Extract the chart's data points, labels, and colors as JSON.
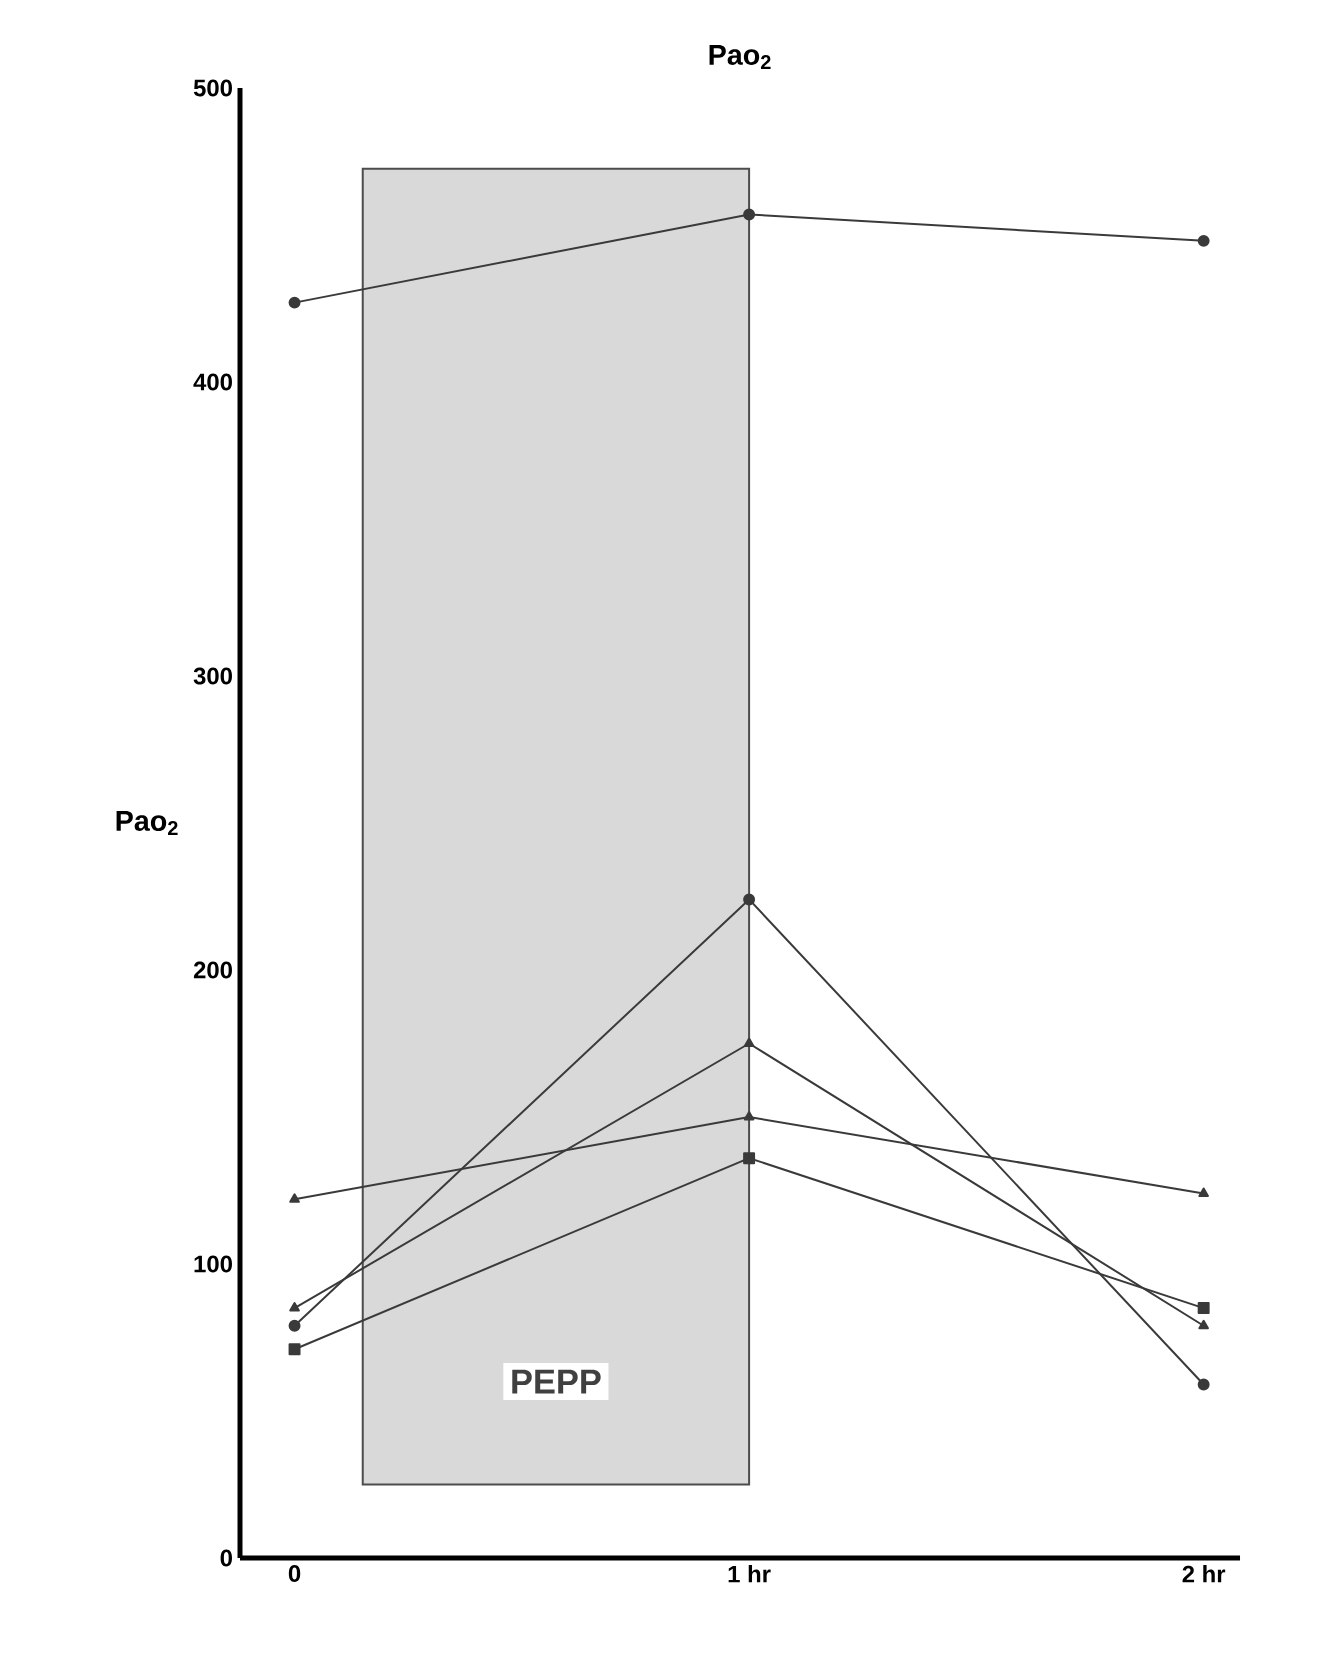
{
  "chart_data": {
    "type": "line",
    "title": "Pao$_{2}$",
    "ylabel": "Pao$_{2}$",
    "x": [
      0,
      1,
      2
    ],
    "xlim": [
      -0.12,
      2.08
    ],
    "xticks": [
      {
        "value": 0,
        "label": "0"
      },
      {
        "value": 1,
        "label": "1 hr"
      },
      {
        "value": 2,
        "label": "2 hr"
      }
    ],
    "ylim": [
      0,
      500
    ],
    "yticks": [
      0,
      100,
      200,
      300,
      400,
      500
    ],
    "series": [
      {
        "color": "#3a3a3a",
        "values": [
          427,
          457,
          448
        ],
        "marker": "circle"
      },
      {
        "color": "#3a3a3a",
        "values": [
          79,
          224,
          59
        ],
        "marker": "circle"
      },
      {
        "color": "#3a3a3a",
        "values": [
          85,
          175,
          79
        ],
        "marker": "triangle"
      },
      {
        "color": "#3a3a3a",
        "values": [
          71,
          136,
          85
        ],
        "marker": "square"
      },
      {
        "color": "#3a3a3a",
        "values": [
          122,
          150,
          124
        ],
        "marker": "triangle"
      }
    ],
    "bands": [
      {
        "axis": "x",
        "from": 0.15,
        "to": 1,
        "label": "PEPP",
        "color": "#d9d9d9"
      }
    ],
    "grid": false,
    "line_style": "solid"
  }
}
